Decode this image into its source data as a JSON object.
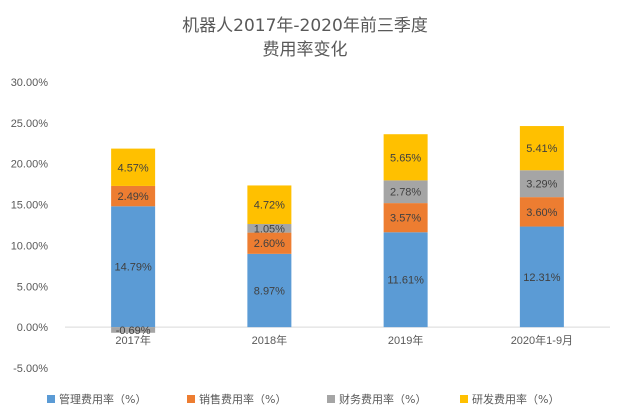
{
  "chart_data": {
    "type": "bar",
    "stacked": true,
    "title_lines": [
      "机器人2017年-2020年前三季度",
      "费用率变化"
    ],
    "categories": [
      "2017年",
      "2018年",
      "2019年",
      "2020年1-9月"
    ],
    "y_ticks": [
      "-5.00%",
      "0.00%",
      "5.00%",
      "10.00%",
      "15.00%",
      "20.00%",
      "25.00%",
      "30.00%"
    ],
    "ylim": [
      -0.05,
      0.3
    ],
    "grid": false,
    "legend_position": "bottom",
    "series": [
      {
        "name": "管理费用率（%）",
        "color": "#5B9BD5",
        "values": [
          0.1479,
          0.0897,
          0.1161,
          0.1231
        ],
        "labels": [
          "14.79%",
          "8.97%",
          "11.61%",
          "12.31%"
        ]
      },
      {
        "name": "销售费用率（%）",
        "color": "#ED7D31",
        "values": [
          0.0249,
          0.026,
          0.0357,
          0.036
        ],
        "labels": [
          "2.49%",
          "2.60%",
          "3.57%",
          "3.60%"
        ]
      },
      {
        "name": "财务费用率（%）",
        "color": "#A5A5A5",
        "values": [
          -0.0069,
          0.0105,
          0.0278,
          0.0329
        ],
        "labels": [
          "-0.69%",
          "1.05%",
          "2.78%",
          "3.29%"
        ]
      },
      {
        "name": "研发费用率（%）",
        "color": "#FFC000",
        "values": [
          0.0457,
          0.0472,
          0.0565,
          0.0541
        ],
        "labels": [
          "4.57%",
          "4.72%",
          "5.65%",
          "5.41%"
        ]
      }
    ]
  }
}
